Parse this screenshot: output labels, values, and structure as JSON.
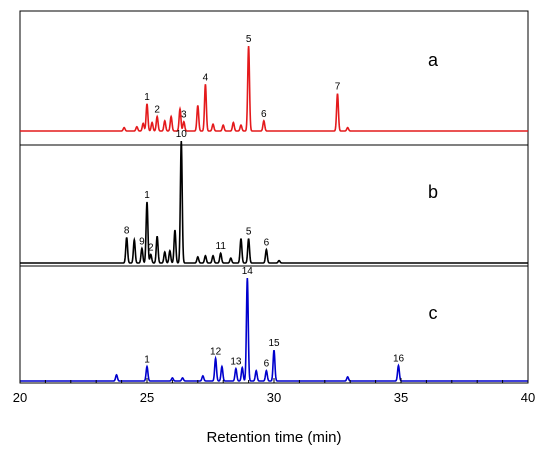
{
  "chart_data": {
    "type": "line",
    "xlabel": "Retention time (min)",
    "xlim": [
      20,
      40
    ],
    "x_ticks": [
      "20",
      "25",
      "30",
      "35",
      "40"
    ],
    "grid": false,
    "panels": [
      {
        "label": "a",
        "color": "#e41a1c",
        "peaks": [
          {
            "x": 24.1,
            "h": 0.04
          },
          {
            "x": 24.6,
            "h": 0.05
          },
          {
            "x": 24.85,
            "h": 0.09
          },
          {
            "x": 25.0,
            "h": 0.32,
            "label": "1"
          },
          {
            "x": 25.2,
            "h": 0.1
          },
          {
            "x": 25.4,
            "h": 0.17,
            "label": "2"
          },
          {
            "x": 25.7,
            "h": 0.12
          },
          {
            "x": 25.95,
            "h": 0.17
          },
          {
            "x": 26.3,
            "h": 0.26
          },
          {
            "x": 26.45,
            "h": 0.11,
            "label": "3"
          },
          {
            "x": 27.0,
            "h": 0.3
          },
          {
            "x": 27.3,
            "h": 0.55,
            "label": "4"
          },
          {
            "x": 27.6,
            "h": 0.08
          },
          {
            "x": 28.0,
            "h": 0.07
          },
          {
            "x": 28.4,
            "h": 0.1
          },
          {
            "x": 28.7,
            "h": 0.07
          },
          {
            "x": 29.0,
            "h": 1.0,
            "label": "5"
          },
          {
            "x": 29.6,
            "h": 0.12,
            "label": "6"
          },
          {
            "x": 32.5,
            "h": 0.44,
            "label": "7"
          },
          {
            "x": 32.9,
            "h": 0.04
          }
        ]
      },
      {
        "label": "b",
        "color": "#000000",
        "peaks": [
          {
            "x": 24.2,
            "h": 0.21,
            "label": "8"
          },
          {
            "x": 24.5,
            "h": 0.19
          },
          {
            "x": 24.8,
            "h": 0.12,
            "label": "9"
          },
          {
            "x": 25.0,
            "h": 0.5,
            "label": "1"
          },
          {
            "x": 25.15,
            "h": 0.07,
            "label": "2"
          },
          {
            "x": 25.4,
            "h": 0.22
          },
          {
            "x": 25.7,
            "h": 0.09
          },
          {
            "x": 25.9,
            "h": 0.1
          },
          {
            "x": 26.1,
            "h": 0.27
          },
          {
            "x": 26.35,
            "h": 1.0,
            "label": "10"
          },
          {
            "x": 27.0,
            "h": 0.05
          },
          {
            "x": 27.3,
            "h": 0.06
          },
          {
            "x": 27.6,
            "h": 0.06
          },
          {
            "x": 27.9,
            "h": 0.08,
            "label": "11"
          },
          {
            "x": 28.3,
            "h": 0.04
          },
          {
            "x": 28.7,
            "h": 0.2
          },
          {
            "x": 29.0,
            "h": 0.2,
            "label": "5"
          },
          {
            "x": 29.7,
            "h": 0.11,
            "label": "6"
          },
          {
            "x": 30.2,
            "h": 0.02
          }
        ]
      },
      {
        "label": "c",
        "color": "#0000cd",
        "peaks": [
          {
            "x": 23.8,
            "h": 0.06
          },
          {
            "x": 25.0,
            "h": 0.14,
            "label": "1"
          },
          {
            "x": 26.0,
            "h": 0.03
          },
          {
            "x": 26.4,
            "h": 0.03
          },
          {
            "x": 27.2,
            "h": 0.05
          },
          {
            "x": 27.7,
            "h": 0.22,
            "label": "12"
          },
          {
            "x": 27.95,
            "h": 0.14
          },
          {
            "x": 28.5,
            "h": 0.12,
            "label": "13"
          },
          {
            "x": 28.75,
            "h": 0.13
          },
          {
            "x": 28.95,
            "h": 1.0,
            "label": "14"
          },
          {
            "x": 29.3,
            "h": 0.1
          },
          {
            "x": 29.7,
            "h": 0.1,
            "label": "6"
          },
          {
            "x": 30.0,
            "h": 0.3,
            "label": "15"
          },
          {
            "x": 32.9,
            "h": 0.04
          },
          {
            "x": 34.9,
            "h": 0.15,
            "label": "16"
          }
        ]
      }
    ]
  }
}
